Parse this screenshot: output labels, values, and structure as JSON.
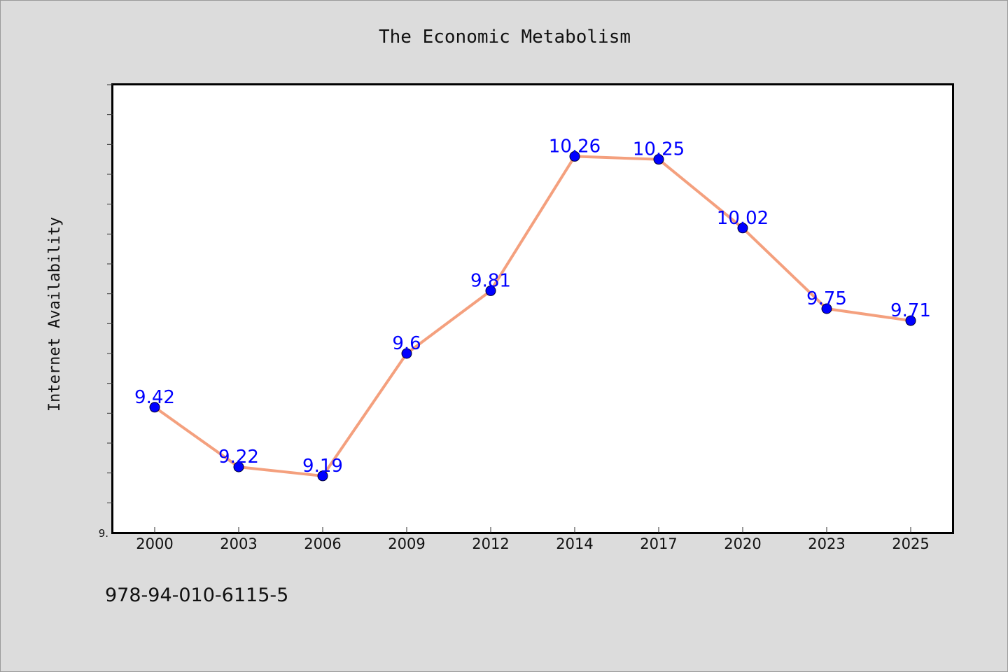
{
  "chart_data": {
    "type": "line",
    "title": "The Economic Metabolism",
    "xlabel": "",
    "ylabel": "Internet Availability",
    "categories": [
      "2000",
      "2003",
      "2006",
      "2009",
      "2012",
      "2014",
      "2017",
      "2020",
      "2023",
      "2025"
    ],
    "series": [
      {
        "values": [
          9.42,
          9.22,
          9.19,
          9.6,
          9.81,
          10.26,
          10.25,
          10.02,
          9.75,
          9.71
        ],
        "line_color": "#f4a07e",
        "marker_color": "#0000ff"
      }
    ],
    "data_labels": [
      "9.42",
      "9.22",
      "9.19",
      "9.6",
      "9.81",
      "10.26",
      "10.25",
      "10.02",
      "9.75",
      "9.71"
    ],
    "ylim": [
      9.0,
      10.5
    ],
    "ytick_labels": [
      "9."
    ],
    "grid": false,
    "legend": "none",
    "plot_background": "#ffffff",
    "page_background": "#dcdcdc"
  },
  "footer": {
    "text": "978-94-010-6115-5"
  }
}
